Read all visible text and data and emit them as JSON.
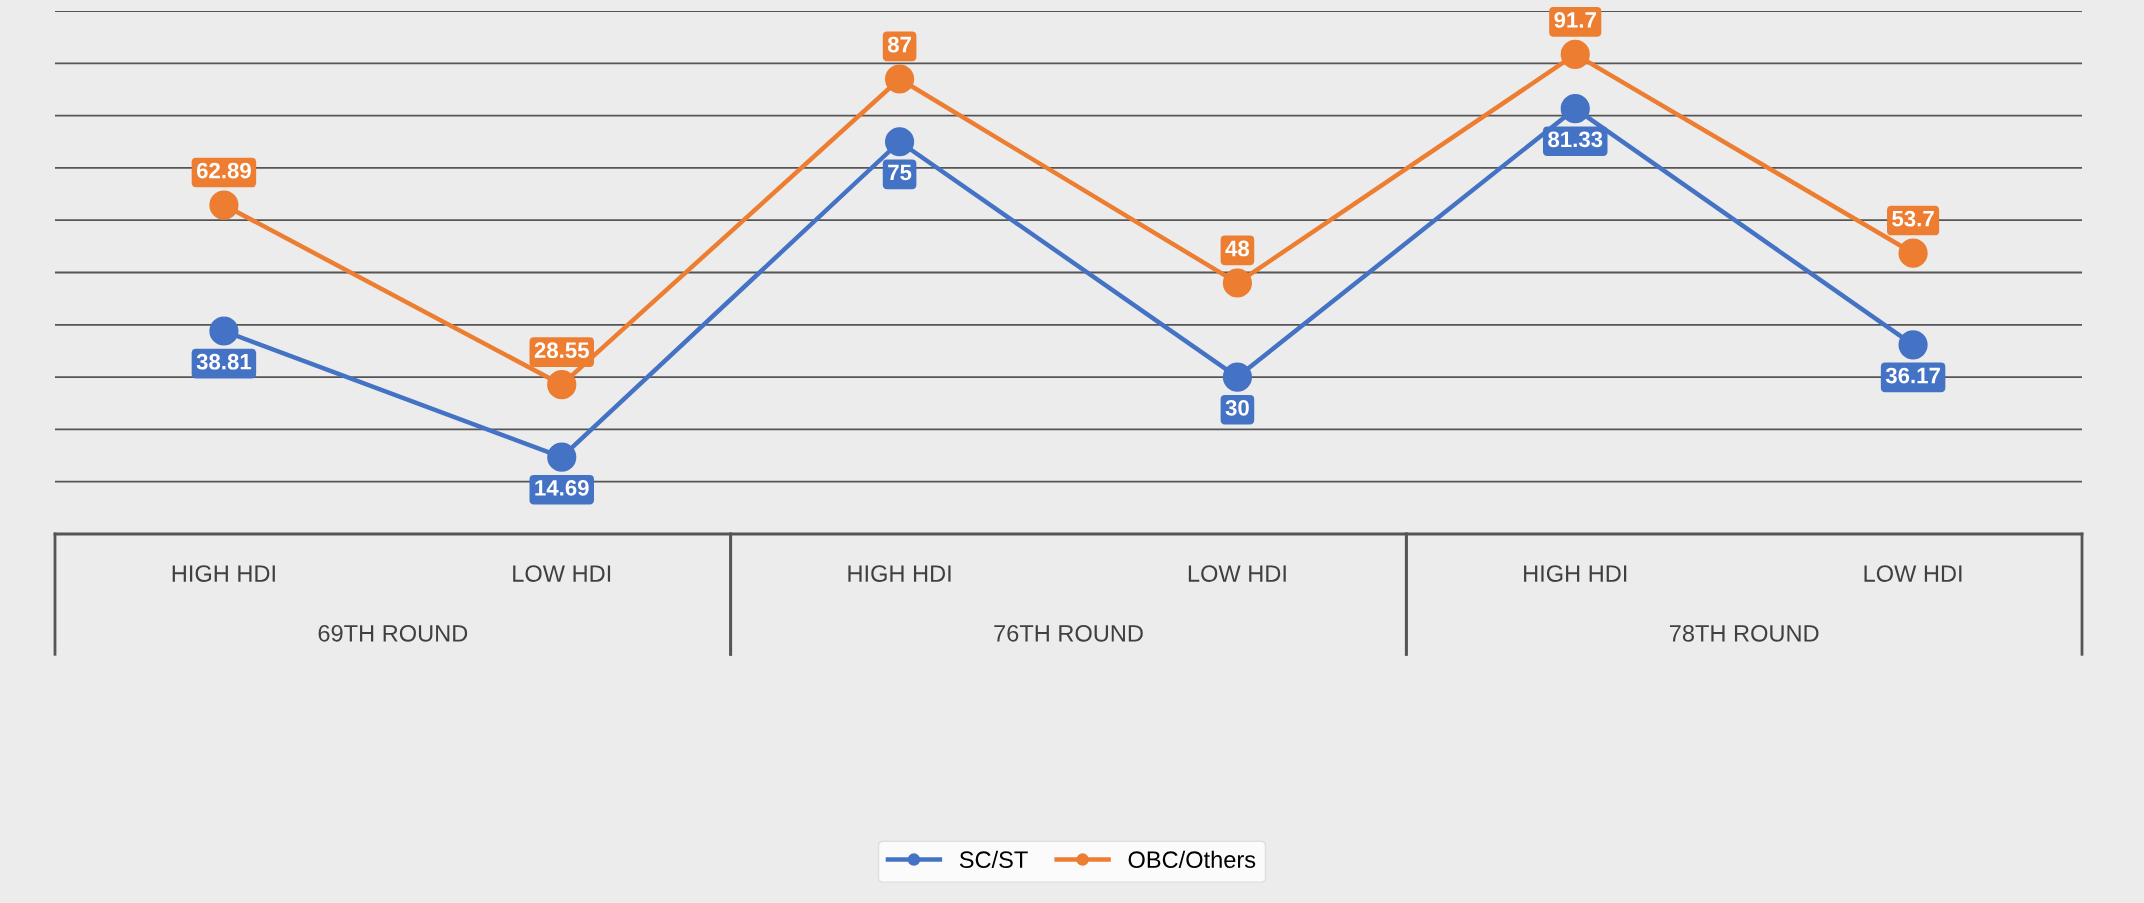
{
  "chart_data": {
    "type": "line",
    "categories": [
      "HIGH HDI",
      "LOW HDI",
      "HIGH HDI",
      "LOW HDI",
      "HIGH HDI",
      "LOW HDI"
    ],
    "series": [
      {
        "name": "SC/ST",
        "color": "#4472c4",
        "values": [
          38.81,
          14.69,
          75,
          30,
          81.33,
          36.17
        ]
      },
      {
        "name": "OBC/Others",
        "color": "#ed7d31",
        "values": [
          62.89,
          28.55,
          87,
          48,
          91.7,
          53.7
        ]
      }
    ],
    "annotations": [
      "69TH ROUND",
      "76TH ROUND",
      "78TH ROUND"
    ],
    "tick_labels": "x",
    "grid": "y",
    "legend": "bottom",
    "marker": "circle",
    "line_style": "solid",
    "data_labels": true
  }
}
